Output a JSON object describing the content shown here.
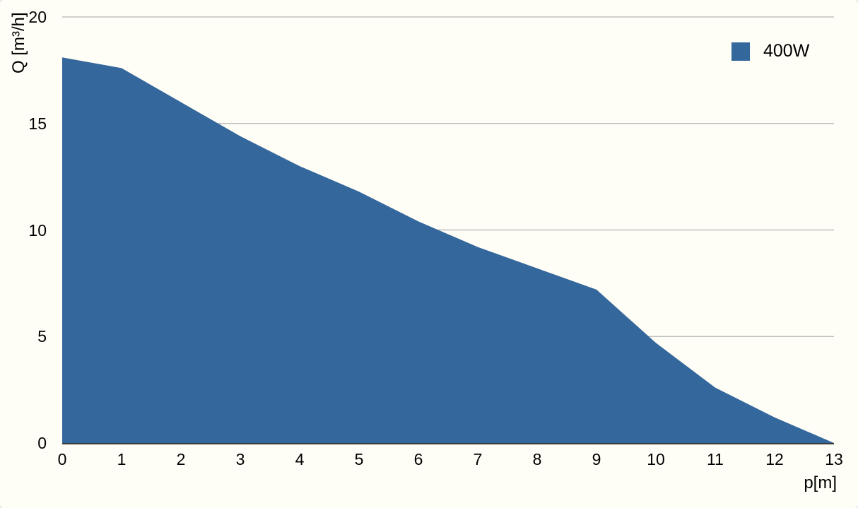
{
  "chart_data": {
    "type": "area",
    "title": "",
    "xlabel": "p[m]",
    "ylabel": "Q [m³/h]",
    "x": [
      0,
      1,
      2,
      3,
      4,
      5,
      6,
      7,
      8,
      9,
      10,
      11,
      12,
      13
    ],
    "series": [
      {
        "name": "400W",
        "values": [
          18.1,
          17.6,
          16.0,
          14.4,
          13.0,
          11.8,
          10.4,
          9.2,
          8.2,
          7.2,
          4.7,
          2.6,
          1.2,
          0
        ]
      }
    ],
    "xlim": [
      0,
      13
    ],
    "ylim": [
      0,
      20
    ],
    "x_ticks": [
      0,
      1,
      2,
      3,
      4,
      5,
      6,
      7,
      8,
      9,
      10,
      11,
      12,
      13
    ],
    "y_ticks": [
      0,
      5,
      10,
      15,
      20
    ],
    "grid": "horizontal-gridlines-at-5-10-15-20",
    "legend_position": "top-right",
    "colors": {
      "area_fill": "#34679c",
      "gridline": "#b3b3b3",
      "axis_line": "#3d3d3d",
      "text": "#000000",
      "background": "#fffef6"
    }
  },
  "legend": {
    "items": [
      {
        "label": "400W",
        "color": "#34679c"
      }
    ]
  },
  "axes": {
    "x_label": "p[m]",
    "y_label": "Q [m³/h]"
  }
}
